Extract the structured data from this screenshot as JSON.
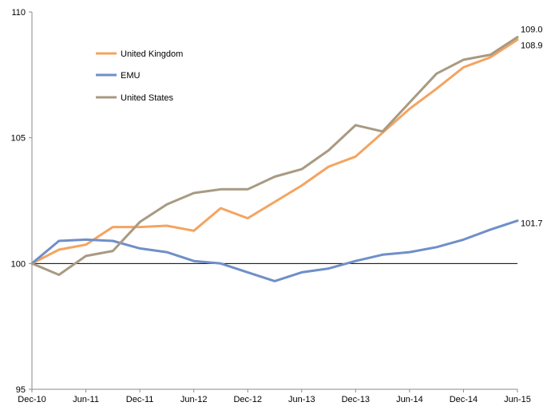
{
  "chart_data": {
    "type": "line",
    "title": "",
    "xlabel": "",
    "ylabel": "",
    "ylim": [
      95,
      110
    ],
    "yticks": [
      95,
      100,
      105,
      110
    ],
    "x_tick_labels": [
      "Dec-10",
      "Jun-11",
      "Dec-11",
      "Jun-12",
      "Dec-12",
      "Jun-13",
      "Dec-13",
      "Jun-14",
      "Dec-14",
      "Jun-15"
    ],
    "x": [
      "Dec-10",
      "Mar-11",
      "Jun-11",
      "Sep-11",
      "Dec-11",
      "Mar-12",
      "Jun-12",
      "Sep-12",
      "Dec-12",
      "Mar-13",
      "Jun-13",
      "Sep-13",
      "Dec-13",
      "Mar-14",
      "Jun-14",
      "Sep-14",
      "Dec-14",
      "Mar-15",
      "Jun-15"
    ],
    "reference_line": 100,
    "legend_position": "top-left",
    "series": [
      {
        "name": "United Kingdom",
        "color": "#F4A460",
        "values": [
          100.0,
          100.55,
          100.75,
          101.45,
          101.45,
          101.5,
          101.3,
          102.2,
          101.8,
          102.45,
          103.1,
          103.85,
          104.25,
          105.2,
          106.15,
          106.95,
          107.8,
          108.2,
          108.9
        ],
        "end_label": "108.9"
      },
      {
        "name": "EMU",
        "color": "#6F8FC8",
        "values": [
          100.0,
          100.9,
          100.95,
          100.9,
          100.6,
          100.45,
          100.1,
          100.0,
          99.65,
          99.3,
          99.65,
          99.8,
          100.1,
          100.35,
          100.45,
          100.65,
          100.95,
          101.35,
          101.7
        ],
        "end_label": "101.7"
      },
      {
        "name": "United States",
        "color": "#A89A82",
        "values": [
          100.0,
          99.55,
          100.3,
          100.5,
          101.65,
          102.35,
          102.8,
          102.95,
          102.95,
          103.45,
          103.75,
          104.5,
          105.5,
          105.25,
          106.4,
          107.55,
          108.1,
          108.3,
          109.0
        ],
        "end_label": "109.0"
      }
    ]
  }
}
